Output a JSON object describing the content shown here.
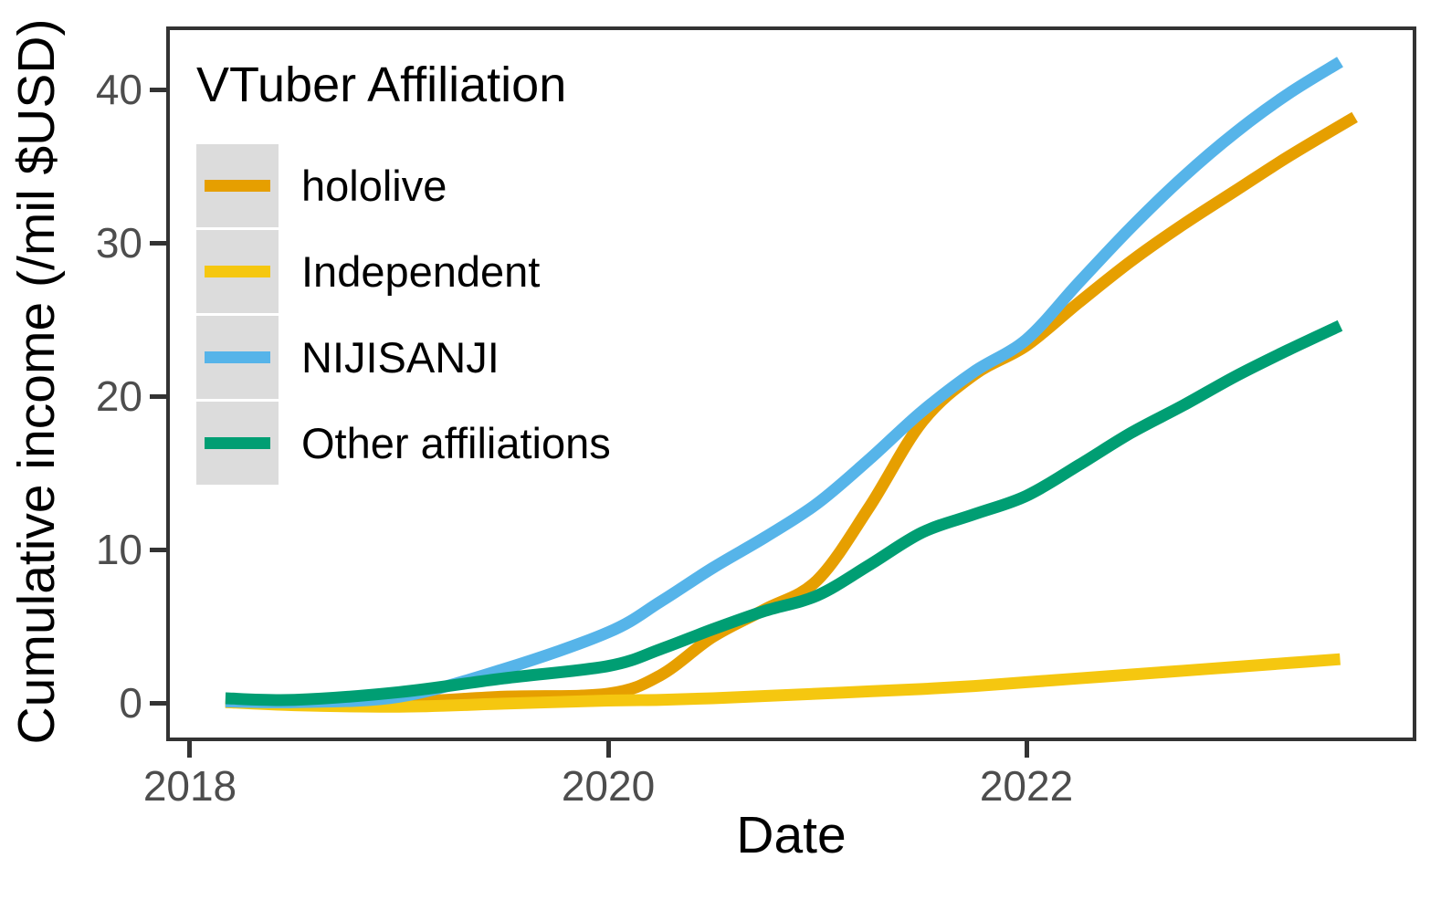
{
  "figure": {
    "background": "#ffffff",
    "axis_color": "#333333",
    "tick_label_color": "#4D4D4D",
    "legend_key_fill": "#DCDCDC"
  },
  "chart_data": {
    "type": "line",
    "legend_title": "VTuber Affiliation",
    "xlabel": "Date",
    "ylabel": "Cumulative income (/mil $USD)",
    "legend_position": "top-left inside panel",
    "grid": false,
    "xlim": [
      2017.904,
      2023.847
    ],
    "ylim": [
      -2.26,
      43.87
    ],
    "x_ticks": [
      {
        "label": "2018",
        "value": 2018
      },
      {
        "label": "2020",
        "value": 2020
      },
      {
        "label": "2022",
        "value": 2022
      }
    ],
    "y_ticks": [
      {
        "label": "0",
        "value": 0
      },
      {
        "label": "10",
        "value": 10
      },
      {
        "label": "20",
        "value": 20
      },
      {
        "label": "30",
        "value": 30
      },
      {
        "label": "40",
        "value": 40
      }
    ],
    "series": [
      {
        "name": "hololive",
        "color": "#E69F00",
        "x": [
          2018.17,
          2018.5,
          2019,
          2019.5,
          2020,
          2020.25,
          2020.5,
          2020.75,
          2021,
          2021.25,
          2021.5,
          2021.75,
          2022,
          2022.25,
          2022.5,
          2022.75,
          2023,
          2023.25,
          2023.57
        ],
        "y": [
          0.15,
          0.0,
          0.05,
          0.4,
          0.6,
          1.8,
          4.3,
          6.1,
          8.0,
          12.8,
          18.3,
          21.4,
          23.3,
          26.1,
          28.8,
          31.2,
          33.4,
          35.6,
          38.2
        ]
      },
      {
        "name": "Independent",
        "color": "#F5C710",
        "x": [
          2018.17,
          2018.5,
          2019,
          2019.5,
          2020,
          2020.25,
          2020.5,
          2020.75,
          2021,
          2021.25,
          2021.5,
          2021.75,
          2022,
          2022.25,
          2022.5,
          2022.75,
          2023,
          2023.25,
          2023.5
        ],
        "y": [
          0.05,
          -0.15,
          -0.25,
          -0.05,
          0.15,
          0.2,
          0.3,
          0.45,
          0.6,
          0.75,
          0.9,
          1.1,
          1.35,
          1.6,
          1.85,
          2.1,
          2.35,
          2.6,
          2.85
        ]
      },
      {
        "name": "NIJISANJI",
        "color": "#56B4E9",
        "x": [
          2018.17,
          2018.5,
          2019,
          2019.5,
          2020,
          2020.25,
          2020.5,
          2020.75,
          2021,
          2021.25,
          2021.5,
          2021.75,
          2022,
          2022.25,
          2022.5,
          2022.75,
          2023,
          2023.25,
          2023.5
        ],
        "y": [
          0.1,
          0.05,
          0.4,
          2.2,
          4.6,
          6.6,
          8.8,
          10.8,
          13.0,
          15.9,
          19.0,
          21.6,
          23.7,
          27.4,
          31.0,
          34.3,
          37.2,
          39.7,
          41.8
        ]
      },
      {
        "name": "Other affiliations",
        "color": "#009E73",
        "x": [
          2018.17,
          2018.5,
          2019,
          2019.5,
          2020,
          2020.25,
          2020.5,
          2020.75,
          2021,
          2021.25,
          2021.5,
          2021.75,
          2022,
          2022.25,
          2022.5,
          2022.75,
          2023,
          2023.25,
          2023.5
        ],
        "y": [
          0.3,
          0.2,
          0.7,
          1.6,
          2.4,
          3.5,
          4.8,
          6.0,
          7.0,
          9.0,
          11.1,
          12.3,
          13.5,
          15.5,
          17.6,
          19.4,
          21.3,
          23.0,
          24.6
        ]
      }
    ]
  }
}
